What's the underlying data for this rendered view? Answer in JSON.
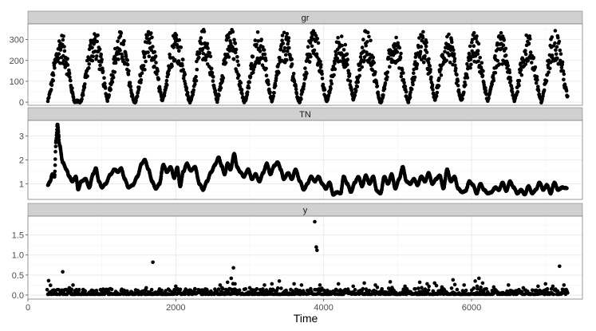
{
  "chart_data": {
    "type": "scatter",
    "xlabel": "Time",
    "xlim": [
      0,
      7500
    ],
    "x_ticks": [
      0,
      2000,
      4000,
      6000
    ],
    "x_tick_labels": [
      "0",
      "2000",
      "4000",
      "6000"
    ],
    "grid": true,
    "legend": "none",
    "colors": {
      "strip_bg": "#d0d0d0",
      "strip_border": "#7f7f7f",
      "panel_border": "#7f7f7f",
      "grid_major": "#ebebeb",
      "grid_minor": "#f5f5f5",
      "point": "#000000"
    },
    "panels": [
      {
        "name": "gr",
        "ylim": [
          -15,
          375
        ],
        "y_ticks": [
          0,
          100,
          200,
          300
        ],
        "y_tick_labels": [
          "0",
          "100",
          "200",
          "300"
        ],
        "series_kind": "seasonal",
        "time_range": [
          270,
          7300
        ],
        "cycle_peaks": [
          {
            "x": 450,
            "y": 330
          },
          {
            "x": 900,
            "y": 355
          },
          {
            "x": 1250,
            "y": 340
          },
          {
            "x": 1640,
            "y": 340
          },
          {
            "x": 2000,
            "y": 355
          },
          {
            "x": 2380,
            "y": 350
          },
          {
            "x": 2740,
            "y": 355
          },
          {
            "x": 3120,
            "y": 340
          },
          {
            "x": 3480,
            "y": 340
          },
          {
            "x": 3860,
            "y": 360
          },
          {
            "x": 4230,
            "y": 340
          },
          {
            "x": 4580,
            "y": 350
          },
          {
            "x": 4960,
            "y": 340
          },
          {
            "x": 5330,
            "y": 345
          },
          {
            "x": 5680,
            "y": 340
          },
          {
            "x": 6040,
            "y": 330
          },
          {
            "x": 6400,
            "y": 330
          },
          {
            "x": 6760,
            "y": 330
          },
          {
            "x": 7130,
            "y": 355
          }
        ],
        "trough_value": 3
      },
      {
        "name": "TN",
        "ylim": [
          0.35,
          3.65
        ],
        "y_ticks": [
          1,
          2,
          3
        ],
        "y_tick_labels": [
          "1",
          "2",
          "3"
        ],
        "series_kind": "path",
        "points": [
          [
            270,
            0.95
          ],
          [
            300,
            1.1
          ],
          [
            330,
            1.4
          ],
          [
            360,
            1.3
          ],
          [
            380,
            2.8
          ],
          [
            400,
            3.5
          ],
          [
            430,
            2.6
          ],
          [
            470,
            1.9
          ],
          [
            520,
            1.6
          ],
          [
            560,
            1.3
          ],
          [
            600,
            1.1
          ],
          [
            650,
            1.3
          ],
          [
            680,
            0.75
          ],
          [
            720,
            1.1
          ],
          [
            780,
            1.2
          ],
          [
            830,
            0.85
          ],
          [
            880,
            1.4
          ],
          [
            920,
            1.65
          ],
          [
            960,
            1.1
          ],
          [
            1000,
            0.85
          ],
          [
            1050,
            1.0
          ],
          [
            1120,
            1.4
          ],
          [
            1170,
            1.6
          ],
          [
            1220,
            1.5
          ],
          [
            1260,
            1.65
          ],
          [
            1310,
            1.2
          ],
          [
            1360,
            0.85
          ],
          [
            1420,
            0.95
          ],
          [
            1480,
            1.3
          ],
          [
            1540,
            1.85
          ],
          [
            1580,
            2.0
          ],
          [
            1630,
            1.6
          ],
          [
            1680,
            1.1
          ],
          [
            1730,
            0.8
          ],
          [
            1780,
            1.0
          ],
          [
            1830,
            1.8
          ],
          [
            1880,
            1.5
          ],
          [
            1930,
            1.7
          ],
          [
            1980,
            1.25
          ],
          [
            2020,
            1.7
          ],
          [
            2060,
            0.9
          ],
          [
            2100,
            1.5
          ],
          [
            2150,
            1.85
          ],
          [
            2200,
            1.55
          ],
          [
            2260,
            1.7
          ],
          [
            2320,
            1.0
          ],
          [
            2370,
            0.75
          ],
          [
            2420,
            1.1
          ],
          [
            2480,
            1.5
          ],
          [
            2530,
            1.8
          ],
          [
            2580,
            2.1
          ],
          [
            2620,
            1.75
          ],
          [
            2660,
            1.4
          ],
          [
            2700,
            1.85
          ],
          [
            2740,
            1.6
          ],
          [
            2790,
            2.25
          ],
          [
            2830,
            1.7
          ],
          [
            2870,
            1.5
          ],
          [
            2920,
            1.3
          ],
          [
            2980,
            1.6
          ],
          [
            3030,
            1.2
          ],
          [
            3080,
            1.4
          ],
          [
            3130,
            1.1
          ],
          [
            3180,
            1.45
          ],
          [
            3230,
            1.85
          ],
          [
            3280,
            1.4
          ],
          [
            3330,
            1.75
          ],
          [
            3380,
            1.9
          ],
          [
            3420,
            1.6
          ],
          [
            3460,
            1.2
          ],
          [
            3520,
            1.45
          ],
          [
            3570,
            1.2
          ],
          [
            3620,
            1.6
          ],
          [
            3680,
            1.1
          ],
          [
            3730,
            0.75
          ],
          [
            3780,
            1.0
          ],
          [
            3830,
            1.3
          ],
          [
            3880,
            1.1
          ],
          [
            3930,
            1.3
          ],
          [
            3980,
            1.0
          ],
          [
            4030,
            0.8
          ],
          [
            4080,
            1.05
          ],
          [
            4130,
            0.55
          ],
          [
            4180,
            0.65
          ],
          [
            4230,
            0.6
          ],
          [
            4270,
            1.3
          ],
          [
            4320,
            1.0
          ],
          [
            4370,
            0.65
          ],
          [
            4420,
            1.05
          ],
          [
            4470,
            1.3
          ],
          [
            4520,
            0.9
          ],
          [
            4570,
            1.35
          ],
          [
            4620,
            1.0
          ],
          [
            4670,
            1.3
          ],
          [
            4720,
            0.7
          ],
          [
            4770,
            0.6
          ],
          [
            4820,
            1.3
          ],
          [
            4870,
            1.0
          ],
          [
            4920,
            1.4
          ],
          [
            4970,
            0.8
          ],
          [
            5020,
            1.2
          ],
          [
            5070,
            1.7
          ],
          [
            5120,
            1.1
          ],
          [
            5170,
            1.0
          ],
          [
            5220,
            1.2
          ],
          [
            5270,
            0.95
          ],
          [
            5320,
            1.3
          ],
          [
            5370,
            1.1
          ],
          [
            5420,
            1.45
          ],
          [
            5470,
            1.0
          ],
          [
            5520,
            1.2
          ],
          [
            5570,
            1.35
          ],
          [
            5620,
            0.8
          ],
          [
            5670,
            1.6
          ],
          [
            5720,
            1.1
          ],
          [
            5770,
            1.3
          ],
          [
            5820,
            0.8
          ],
          [
            5870,
            0.65
          ],
          [
            5920,
            0.7
          ],
          [
            5970,
            1.1
          ],
          [
            6020,
            0.95
          ],
          [
            6070,
            0.6
          ],
          [
            6120,
            1.0
          ],
          [
            6170,
            0.75
          ],
          [
            6220,
            0.6
          ],
          [
            6270,
            0.65
          ],
          [
            6320,
            0.85
          ],
          [
            6370,
            0.75
          ],
          [
            6420,
            1.05
          ],
          [
            6470,
            0.7
          ],
          [
            6520,
            1.1
          ],
          [
            6570,
            0.85
          ],
          [
            6620,
            0.6
          ],
          [
            6670,
            0.75
          ],
          [
            6720,
            0.55
          ],
          [
            6770,
            0.9
          ],
          [
            6820,
            0.6
          ],
          [
            6870,
            0.75
          ],
          [
            6920,
            1.05
          ],
          [
            6970,
            0.75
          ],
          [
            7020,
            0.95
          ],
          [
            7070,
            0.6
          ],
          [
            7120,
            1.05
          ],
          [
            7170,
            0.75
          ],
          [
            7230,
            0.85
          ],
          [
            7290,
            0.82
          ]
        ]
      },
      {
        "name": "y",
        "ylim": [
          -0.1,
          1.97
        ],
        "y_ticks": [
          0.0,
          0.5,
          1.0,
          1.5
        ],
        "y_tick_labels": [
          "0.0",
          "0.5",
          "1.0",
          "1.5"
        ],
        "series_kind": "sparse",
        "time_range": [
          270,
          7300
        ],
        "base_level": 0.02,
        "spikes": [
          [
            280,
            0.36
          ],
          [
            470,
            0.58
          ],
          [
            560,
            0.18
          ],
          [
            610,
            0.25
          ],
          [
            650,
            0.12
          ],
          [
            900,
            0.1
          ],
          [
            1100,
            0.06
          ],
          [
            1300,
            0.12
          ],
          [
            1550,
            0.1
          ],
          [
            1600,
            0.18
          ],
          [
            1690,
            0.82
          ],
          [
            1780,
            0.15
          ],
          [
            2000,
            0.22
          ],
          [
            2200,
            0.12
          ],
          [
            2400,
            0.15
          ],
          [
            2600,
            0.25
          ],
          [
            2700,
            0.32
          ],
          [
            2750,
            0.42
          ],
          [
            2780,
            0.68
          ],
          [
            2800,
            0.28
          ],
          [
            3000,
            0.18
          ],
          [
            3200,
            0.25
          ],
          [
            3300,
            0.28
          ],
          [
            3400,
            0.35
          ],
          [
            3600,
            0.28
          ],
          [
            3700,
            0.25
          ],
          [
            3880,
            1.83
          ],
          [
            3900,
            1.2
          ],
          [
            3910,
            1.12
          ],
          [
            3950,
            0.25
          ],
          [
            4200,
            0.28
          ],
          [
            4400,
            0.22
          ],
          [
            4550,
            0.3
          ],
          [
            4700,
            0.25
          ],
          [
            4900,
            0.33
          ],
          [
            5100,
            0.22
          ],
          [
            5300,
            0.32
          ],
          [
            5400,
            0.28
          ],
          [
            5500,
            0.3
          ],
          [
            5600,
            0.2
          ],
          [
            5750,
            0.38
          ],
          [
            5900,
            0.25
          ],
          [
            6050,
            0.35
          ],
          [
            6100,
            0.42
          ],
          [
            6150,
            0.3
          ],
          [
            6300,
            0.2
          ],
          [
            6500,
            0.25
          ],
          [
            6700,
            0.18
          ],
          [
            6900,
            0.22
          ],
          [
            7000,
            0.28
          ],
          [
            7100,
            0.22
          ],
          [
            7190,
            0.72
          ],
          [
            7250,
            0.25
          ]
        ]
      }
    ]
  }
}
